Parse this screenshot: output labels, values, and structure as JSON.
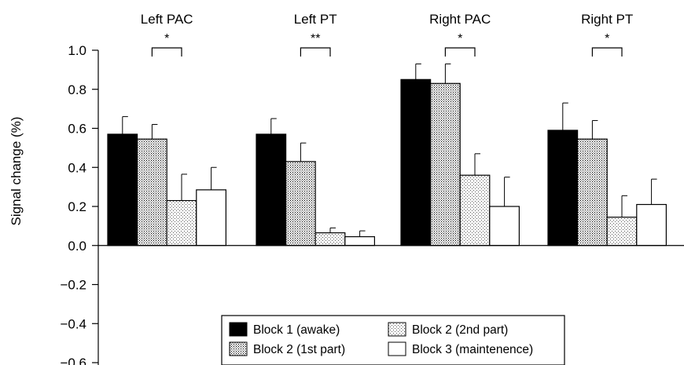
{
  "chart_data": {
    "type": "bar",
    "ylabel": "Signal change (%)",
    "ylim": [
      -0.6,
      1.0
    ],
    "yticks": [
      {
        "value": 1.0,
        "label": "1.0"
      },
      {
        "value": 0.8,
        "label": "0.8"
      },
      {
        "value": 0.6,
        "label": "0.6"
      },
      {
        "value": 0.4,
        "label": "0.4"
      },
      {
        "value": 0.2,
        "label": "0.2"
      },
      {
        "value": 0.0,
        "label": "0.0"
      },
      {
        "value": -0.2,
        "label": "−0.2"
      },
      {
        "value": -0.4,
        "label": "−0.4"
      },
      {
        "value": -0.6,
        "label": "−0.6"
      }
    ],
    "categories": [
      "Left PAC",
      "Left PT",
      "Right PAC",
      "Right PT"
    ],
    "series": [
      {
        "name": "Block 1 (awake)",
        "pattern": "solid-black",
        "values": [
          0.57,
          0.57,
          0.85,
          0.59
        ],
        "errors": [
          0.09,
          0.08,
          0.08,
          0.14
        ]
      },
      {
        "name": "Block 2 (1st part)",
        "pattern": "dense-dots",
        "values": [
          0.545,
          0.43,
          0.83,
          0.545
        ],
        "errors": [
          0.075,
          0.095,
          0.1,
          0.095
        ]
      },
      {
        "name": "Block 2 (2nd part)",
        "pattern": "light-dots",
        "values": [
          0.23,
          0.065,
          0.36,
          0.145
        ],
        "errors": [
          0.135,
          0.025,
          0.11,
          0.11
        ]
      },
      {
        "name": "Block 3 (maintenence)",
        "pattern": "white",
        "values": [
          0.285,
          0.045,
          0.2,
          0.21
        ],
        "errors": [
          0.115,
          0.03,
          0.15,
          0.13
        ]
      }
    ],
    "significance": [
      {
        "category": "Left PAC",
        "between": [
          "Block 2 (1st part)",
          "Block 2 (2nd part)"
        ],
        "label": "*"
      },
      {
        "category": "Left PT",
        "between": [
          "Block 2 (1st part)",
          "Block 2 (2nd part)"
        ],
        "label": "**"
      },
      {
        "category": "Right PAC",
        "between": [
          "Block 2 (1st part)",
          "Block 2 (2nd part)"
        ],
        "label": "*"
      },
      {
        "category": "Right PT",
        "between": [
          "Block 2 (1st part)",
          "Block 2 (2nd part)"
        ],
        "label": "*"
      }
    ],
    "legend": {
      "placement": "bottom-center",
      "columns": 2
    },
    "grid": false
  }
}
